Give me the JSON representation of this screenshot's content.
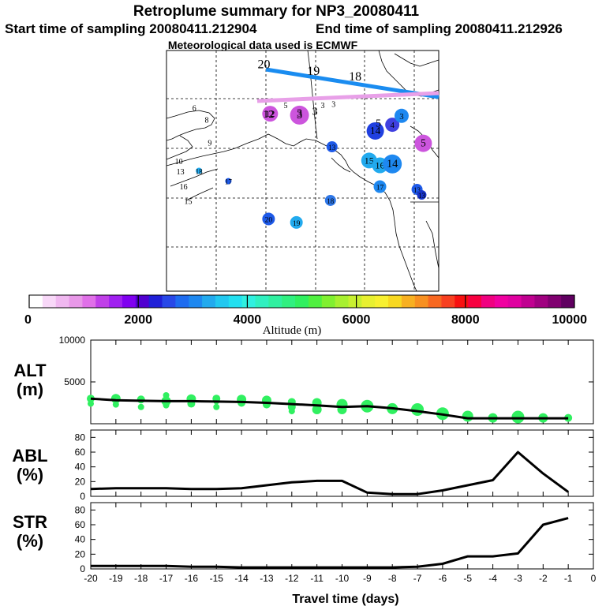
{
  "header": {
    "title": "Retroplume summary for NP3_20080411",
    "start_label": "Start time of sampling 20080411.212904",
    "end_label": "End time of sampling 20080411.212926",
    "met_label": "Meteorological data used is ECMWF"
  },
  "map": {
    "bg": "#ffffff",
    "trajectory_blue": {
      "color": "#1a8cf0",
      "labels": [
        {
          "text": "20",
          "lon": -173.5,
          "lat": 78
        },
        {
          "text": "19",
          "lon": -157.5,
          "lat": 77
        },
        {
          "text": "18",
          "lon": -144,
          "lat": 76.2
        }
      ]
    },
    "trajectory_pink": {
      "color": "#e8a0e8",
      "labels": [
        {
          "text": "12",
          "lon": -172,
          "lat": 70.8
        },
        {
          "text": "3",
          "lon": -162,
          "lat": 71
        },
        {
          "text": "3",
          "lon": -157,
          "lat": 71.2
        },
        {
          "text": "5",
          "lon": -136.5,
          "lat": 69.5
        }
      ]
    },
    "small_labels": [
      {
        "text": "6",
        "lon": -196,
        "lat": 71.2
      },
      {
        "text": "8",
        "lon": -192,
        "lat": 69.5
      },
      {
        "text": "9",
        "lon": -191,
        "lat": 66.2
      },
      {
        "text": "10",
        "lon": -201,
        "lat": 63.5
      },
      {
        "text": "13",
        "lon": -200.5,
        "lat": 62
      },
      {
        "text": "16",
        "lon": -199.5,
        "lat": 59.8
      },
      {
        "text": "15",
        "lon": -198,
        "lat": 57.7
      },
      {
        "text": "5",
        "lon": -166.5,
        "lat": 71.6
      },
      {
        "text": "3",
        "lon": -154.5,
        "lat": 71.6
      },
      {
        "text": "3",
        "lon": -151,
        "lat": 71.8
      }
    ],
    "dots": [
      {
        "text": "14",
        "lon": -137.5,
        "lat": 68.3,
        "color": "#2040e0",
        "r": 11
      },
      {
        "text": "13",
        "lon": -151.5,
        "lat": 66,
        "color": "#1e5ae8",
        "r": 7
      },
      {
        "text": "15",
        "lon": -139.5,
        "lat": 64,
        "color": "#22aaee",
        "r": 10
      },
      {
        "text": "16",
        "lon": -136,
        "lat": 63.3,
        "color": "#22aaee",
        "r": 10
      },
      {
        "text": "14",
        "lon": -132,
        "lat": 63.5,
        "color": "#1e88f0",
        "r": 12
      },
      {
        "text": "17",
        "lon": -136,
        "lat": 60.2,
        "color": "#1e88f0",
        "r": 8
      },
      {
        "text": "13",
        "lon": -124,
        "lat": 59.8,
        "color": "#1e5ae8",
        "r": 7
      },
      {
        "text": "13",
        "lon": -122.5,
        "lat": 59,
        "color": "#1733c8",
        "r": 6
      },
      {
        "text": "20",
        "lon": -172,
        "lat": 55.5,
        "color": "#1e5ae8",
        "r": 8
      },
      {
        "text": "19",
        "lon": -163,
        "lat": 55,
        "color": "#22aaee",
        "r": 8
      },
      {
        "text": "18",
        "lon": -152,
        "lat": 58.2,
        "color": "#2e76e6",
        "r": 7
      },
      {
        "text": "17",
        "lon": -185,
        "lat": 61,
        "color": "#1e5ae8",
        "r": 4
      },
      {
        "text": "18",
        "lon": -194.5,
        "lat": 62.5,
        "color": "#22aaee",
        "r": 4
      },
      {
        "text": "5",
        "lon": -122,
        "lat": 66.5,
        "color": "#cc55dd",
        "r": 11
      },
      {
        "text": "4",
        "lon": -132,
        "lat": 69.2,
        "color": "#4040e0",
        "r": 9
      },
      {
        "text": "3",
        "lon": -129,
        "lat": 70.5,
        "color": "#1e88f0",
        "r": 9
      },
      {
        "text": "3",
        "lon": -162,
        "lat": 70.6,
        "color": "#cc55dd",
        "r": 12
      },
      {
        "text": "12",
        "lon": -171.5,
        "lat": 70.8,
        "color": "#cc55dd",
        "r": 10
      }
    ]
  },
  "colorbar": {
    "colors": [
      "#ffffff",
      "#f8d8f8",
      "#f0b8f0",
      "#e898e8",
      "#e070e8",
      "#c040e8",
      "#a020f0",
      "#8000f0",
      "#5000d0",
      "#2020d8",
      "#2848e8",
      "#1e6cf0",
      "#1e88f0",
      "#22aaee",
      "#22c8f0",
      "#22e0f0",
      "#30f0e0",
      "#30f0c0",
      "#30f0a0",
      "#30f080",
      "#30f060",
      "#50f040",
      "#80f030",
      "#a8f030",
      "#c8f030",
      "#e8f030",
      "#f8f030",
      "#f8d820",
      "#f8b020",
      "#f89020",
      "#f86820",
      "#f84020",
      "#f81010",
      "#f80040",
      "#f00080",
      "#f000a0",
      "#e000a0",
      "#c00090",
      "#a00080",
      "#800070",
      "#600060"
    ],
    "ticks": [
      {
        "value": 0,
        "label": "0"
      },
      {
        "value": 2000,
        "label": "2000"
      },
      {
        "value": 4000,
        "label": "4000"
      },
      {
        "value": 6000,
        "label": "6000"
      },
      {
        "value": 8000,
        "label": "8000"
      },
      {
        "value": 10000,
        "label": "10000"
      }
    ],
    "label": "Altitude (m)"
  },
  "panels": {
    "alt": {
      "label_top": "ALT",
      "label_bottom": "(m)"
    },
    "abl": {
      "label_top": "ABL",
      "label_bottom": "(%)"
    },
    "str": {
      "label_top": "STR",
      "label_bottom": "(%)"
    }
  },
  "chart_data": [
    {
      "type": "scatter",
      "name": "ALT",
      "xlabel": "Travel time (days)",
      "ylabel": "ALT (m)",
      "xlim": [
        -20,
        0
      ],
      "ylim": [
        0,
        10000
      ],
      "yticks": [
        5000,
        10000
      ],
      "ytick_labels": [
        "5000",
        "10000"
      ],
      "line": {
        "x": [
          -20,
          -19,
          -18,
          -17,
          -16,
          -15,
          -14,
          -13,
          -12,
          -11,
          -10,
          -9,
          -8,
          -7,
          -6,
          -5,
          -4,
          -3,
          -2,
          -1
        ],
        "y": [
          3000,
          2800,
          2750,
          2700,
          2700,
          2650,
          2600,
          2500,
          2350,
          2200,
          2000,
          2100,
          1850,
          1500,
          1100,
          650,
          650,
          650,
          650,
          650
        ]
      },
      "points": [
        {
          "x": -20,
          "y": 3000,
          "r": 5
        },
        {
          "x": -20,
          "y": 2400,
          "r": 4
        },
        {
          "x": -19,
          "y": 3000,
          "r": 6
        },
        {
          "x": -19,
          "y": 2300,
          "r": 4
        },
        {
          "x": -18,
          "y": 2900,
          "r": 5
        },
        {
          "x": -18,
          "y": 2000,
          "r": 4
        },
        {
          "x": -17,
          "y": 3400,
          "r": 4
        },
        {
          "x": -17,
          "y": 2700,
          "r": 6
        },
        {
          "x": -17,
          "y": 2200,
          "r": 4
        },
        {
          "x": -16,
          "y": 2950,
          "r": 6
        },
        {
          "x": -16,
          "y": 2400,
          "r": 5
        },
        {
          "x": -15,
          "y": 3000,
          "r": 5
        },
        {
          "x": -15,
          "y": 2700,
          "r": 4
        },
        {
          "x": -15,
          "y": 2000,
          "r": 4
        },
        {
          "x": -14,
          "y": 2900,
          "r": 6
        },
        {
          "x": -14,
          "y": 2500,
          "r": 5
        },
        {
          "x": -13,
          "y": 2800,
          "r": 6
        },
        {
          "x": -13,
          "y": 2300,
          "r": 5
        },
        {
          "x": -12,
          "y": 2600,
          "r": 5
        },
        {
          "x": -12,
          "y": 2000,
          "r": 5
        },
        {
          "x": -12,
          "y": 1500,
          "r": 4
        },
        {
          "x": -11,
          "y": 2500,
          "r": 6
        },
        {
          "x": -11,
          "y": 1700,
          "r": 6
        },
        {
          "x": -10,
          "y": 2300,
          "r": 7
        },
        {
          "x": -10,
          "y": 1700,
          "r": 6
        },
        {
          "x": -9,
          "y": 2100,
          "r": 8
        },
        {
          "x": -8,
          "y": 1800,
          "r": 7
        },
        {
          "x": -7,
          "y": 1700,
          "r": 8
        },
        {
          "x": -6,
          "y": 1200,
          "r": 8
        },
        {
          "x": -5,
          "y": 900,
          "r": 7
        },
        {
          "x": -4,
          "y": 700,
          "r": 6
        },
        {
          "x": -3,
          "y": 800,
          "r": 8
        },
        {
          "x": -2,
          "y": 700,
          "r": 6
        },
        {
          "x": -1,
          "y": 700,
          "r": 5
        }
      ],
      "point_color": "#30f060",
      "line_color": "#000000"
    },
    {
      "type": "line",
      "name": "ABL",
      "ylabel": "ABL (%)",
      "xlim": [
        -20,
        0
      ],
      "ylim": [
        0,
        90
      ],
      "yticks": [
        0,
        20,
        40,
        60,
        80
      ],
      "ytick_labels": [
        "0",
        "20",
        "40",
        "60",
        "80"
      ],
      "x": [
        -20,
        -19,
        -18,
        -17,
        -16,
        -15,
        -14,
        -13,
        -12,
        -11,
        -10,
        -9,
        -8,
        -7,
        -6,
        -5,
        -4,
        -3,
        -2,
        -1
      ],
      "y": [
        10,
        11,
        11,
        11,
        10,
        10,
        11,
        15,
        19,
        21,
        21,
        5,
        3,
        3,
        8,
        15,
        22,
        60,
        31,
        6
      ],
      "line_color": "#000000"
    },
    {
      "type": "line",
      "name": "STR",
      "ylabel": "STR (%)",
      "xlabel": "Travel time (days)",
      "xlim": [
        -20,
        0
      ],
      "ylim": [
        0,
        90
      ],
      "yticks": [
        0,
        20,
        40,
        60,
        80
      ],
      "ytick_labels": [
        "0",
        "20",
        "40",
        "60",
        "80"
      ],
      "xticks": [
        -20,
        -19,
        -18,
        -17,
        -16,
        -15,
        -14,
        -13,
        -12,
        -11,
        -10,
        -9,
        -8,
        -7,
        -6,
        -5,
        -4,
        -3,
        -2,
        -1,
        0
      ],
      "xtick_labels": [
        "-20",
        "-19",
        "-18",
        "-17",
        "-16",
        "-15",
        "-14",
        "-13",
        "-12",
        "-11",
        "-10",
        "-9",
        "-8",
        "-7",
        "-6",
        "-5",
        "-4",
        "-3",
        "-2",
        "-1",
        "0"
      ],
      "x": [
        -20,
        -19,
        -18,
        -17,
        -16,
        -15,
        -14,
        -13,
        -12,
        -11,
        -10,
        -9,
        -8,
        -7,
        -6,
        -5,
        -4,
        -3,
        -2,
        -1
      ],
      "y": [
        4,
        4,
        4,
        4,
        3,
        3,
        2,
        2,
        2,
        2,
        2,
        2,
        2,
        3,
        7,
        17,
        17,
        21,
        60,
        69
      ],
      "line_color": "#000000"
    }
  ]
}
